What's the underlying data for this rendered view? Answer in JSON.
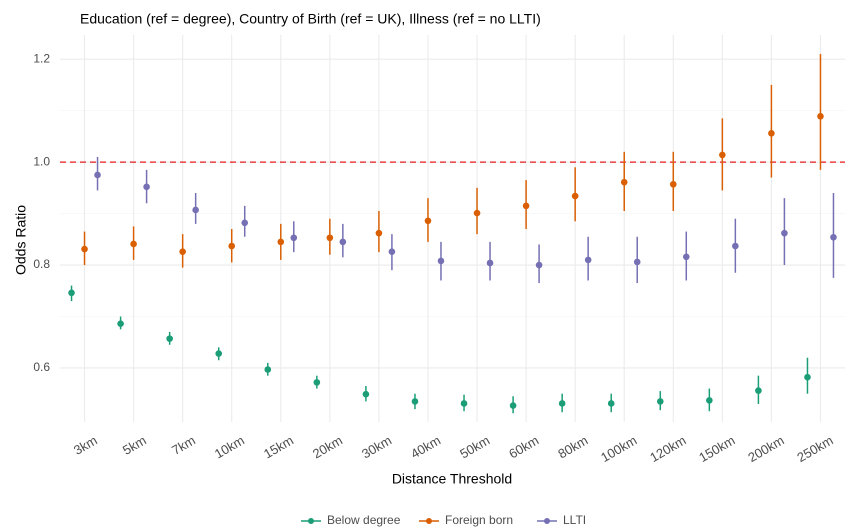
{
  "chart_data": {
    "type": "errorbar",
    "title": "Education (ref = degree), Country of Birth (ref = UK), Illness (ref = no LLTI)",
    "x_label": "Distance Threshold",
    "y_label": "Odds Ratio",
    "categories": [
      "3km",
      "5km",
      "7km",
      "10km",
      "15km",
      "20km",
      "30km",
      "40km",
      "50km",
      "60km",
      "80km",
      "100km",
      "120km",
      "150km",
      "200km",
      "250km"
    ],
    "ylim": [
      0.495,
      1.247
    ],
    "yticks": [
      {
        "value": 0.6,
        "label": "0.6"
      },
      {
        "value": 0.8,
        "label": "0.8"
      },
      {
        "value": 1.0,
        "label": "1.0"
      },
      {
        "value": 1.2,
        "label": "1.2"
      }
    ],
    "grid": true,
    "reference_line": {
      "value": 1.0,
      "color": "#e41a1c"
    },
    "legend": "bottom",
    "series": [
      {
        "name": "Below degree",
        "color": "#1b9e77",
        "values": [
          0.746,
          0.686,
          0.657,
          0.628,
          0.597,
          0.572,
          0.549,
          0.535,
          0.531,
          0.527,
          0.531,
          0.531,
          0.535,
          0.537,
          0.556,
          0.582
        ],
        "lower": [
          0.73,
          0.675,
          0.645,
          0.615,
          0.585,
          0.56,
          0.535,
          0.52,
          0.516,
          0.512,
          0.514,
          0.514,
          0.518,
          0.516,
          0.53,
          0.55
        ],
        "upper": [
          0.76,
          0.7,
          0.67,
          0.64,
          0.61,
          0.585,
          0.565,
          0.55,
          0.548,
          0.545,
          0.55,
          0.55,
          0.555,
          0.56,
          0.585,
          0.62
        ]
      },
      {
        "name": "Foreign born",
        "color": "#d95f02",
        "values": [
          0.831,
          0.841,
          0.826,
          0.837,
          0.845,
          0.853,
          0.862,
          0.886,
          0.901,
          0.915,
          0.934,
          0.961,
          0.957,
          1.014,
          1.056,
          1.089
        ],
        "lower": [
          0.8,
          0.81,
          0.795,
          0.805,
          0.81,
          0.82,
          0.825,
          0.845,
          0.86,
          0.87,
          0.885,
          0.905,
          0.905,
          0.945,
          0.97,
          0.985
        ],
        "upper": [
          0.865,
          0.875,
          0.86,
          0.87,
          0.88,
          0.89,
          0.905,
          0.93,
          0.95,
          0.965,
          0.99,
          1.02,
          1.02,
          1.085,
          1.15,
          1.21
        ]
      },
      {
        "name": "LLTI",
        "color": "#7570b3",
        "values": [
          0.975,
          0.952,
          0.907,
          0.882,
          0.853,
          0.845,
          0.826,
          0.808,
          0.804,
          0.8,
          0.81,
          0.806,
          0.816,
          0.837,
          0.862,
          0.854
        ],
        "lower": [
          0.945,
          0.92,
          0.88,
          0.855,
          0.825,
          0.815,
          0.79,
          0.77,
          0.77,
          0.765,
          0.77,
          0.765,
          0.77,
          0.785,
          0.8,
          0.775
        ],
        "upper": [
          1.01,
          0.985,
          0.94,
          0.915,
          0.885,
          0.88,
          0.86,
          0.845,
          0.845,
          0.84,
          0.855,
          0.855,
          0.865,
          0.89,
          0.93,
          0.94
        ]
      }
    ]
  }
}
